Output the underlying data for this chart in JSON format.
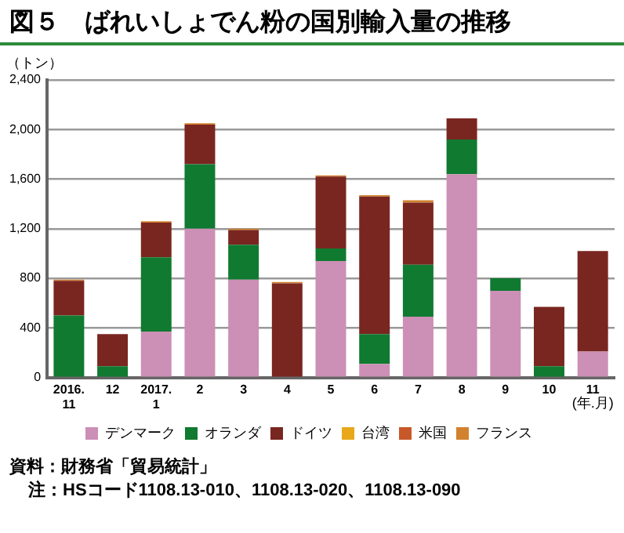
{
  "chart_data": {
    "type": "bar",
    "title": "図５　ばれいしょでん粉の国別輸入量の推移",
    "ylabel": "（トン）",
    "xlabel": "(年.月)",
    "categories": [
      "2016.\n11",
      "12",
      "2017.\n1",
      "2",
      "3",
      "4",
      "5",
      "6",
      "7",
      "8",
      "9",
      "10",
      "11"
    ],
    "stacked": true,
    "series": [
      {
        "name": "デンマーク",
        "color": "#cc8fb5",
        "values": [
          null,
          null,
          370,
          1200,
          790,
          null,
          940,
          110,
          490,
          1640,
          700,
          null,
          210
        ]
      },
      {
        "name": "オランダ",
        "color": "#0f7a30",
        "values": [
          500,
          90,
          600,
          520,
          280,
          null,
          100,
          240,
          420,
          280,
          100,
          90,
          null
        ]
      },
      {
        "name": "ドイツ",
        "color": "#7a2620",
        "values": [
          280,
          260,
          280,
          320,
          120,
          760,
          580,
          1110,
          500,
          170,
          null,
          480,
          810
        ]
      },
      {
        "name": "台湾",
        "color": "#e8a81a",
        "values": [
          null,
          null,
          null,
          null,
          null,
          null,
          null,
          null,
          null,
          null,
          null,
          null,
          null
        ]
      },
      {
        "name": "米国",
        "color": "#c8582a",
        "values": [
          null,
          null,
          null,
          null,
          null,
          null,
          null,
          null,
          null,
          null,
          null,
          null,
          null
        ]
      },
      {
        "name": "フランス",
        "color": "#d2822e",
        "values": [
          10,
          null,
          10,
          10,
          10,
          10,
          10,
          10,
          20,
          null,
          null,
          null,
          null
        ]
      }
    ],
    "ylim": [
      0,
      2400
    ],
    "yticks": [
      0,
      400,
      800,
      {
        "value": 1200,
        "label": "1,200"
      },
      {
        "value": 1600,
        "label": "1,600"
      },
      {
        "value": 2000,
        "label": "2,000"
      },
      {
        "value": 2400,
        "label": "2,400"
      }
    ],
    "grid": "y",
    "legend": "bottom",
    "annotations": [
      "資料：財務省「貿易統計」",
      "注：HSコード1108.13-010、1108.13-020、1108.13-090"
    ]
  }
}
